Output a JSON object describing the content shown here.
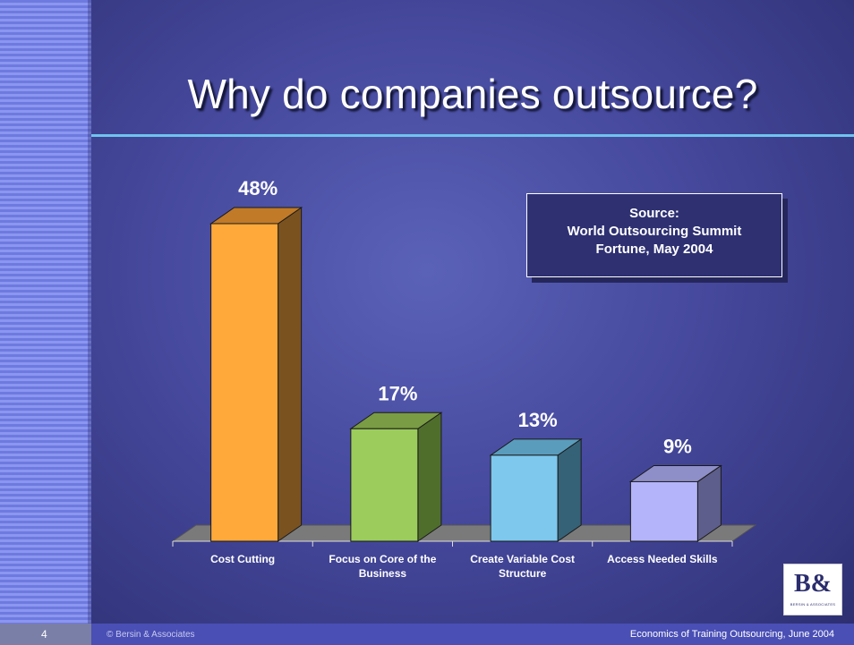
{
  "slide": {
    "title": "Why do companies outsource?",
    "source_box": {
      "line1": "Source:",
      "line2": "World Outsourcing Summit",
      "line3": "Fortune, May 2004"
    },
    "footer": {
      "page_number": "4",
      "copyright": "© Bersin & Associates",
      "right_text": "Economics of Training Outsourcing, June 2004"
    },
    "logo": {
      "mark": "B&",
      "subtitle": "BERSIN & ASSOCIATES"
    }
  },
  "colors": {
    "title_rule": "#6fc4ee",
    "floor": "#7a7a7a",
    "bars": [
      {
        "front": "#ffa93a",
        "top": "#c07a28",
        "side": "#7a5220"
      },
      {
        "front": "#9ccc5c",
        "top": "#7a9c44",
        "side": "#4f6e2c"
      },
      {
        "front": "#7ec8ee",
        "top": "#5a9cbc",
        "side": "#366278"
      },
      {
        "front": "#b4b4fa",
        "top": "#8e8ec8",
        "side": "#5e5e8c"
      }
    ]
  },
  "chart_data": {
    "type": "bar",
    "categories": [
      [
        "Cost Cutting"
      ],
      [
        "Focus on Core of the",
        "Business"
      ],
      [
        "Create Variable Cost",
        "Structure"
      ],
      [
        "Access Needed Skills"
      ]
    ],
    "values": [
      48,
      17,
      13,
      9
    ],
    "data_labels": [
      "48%",
      "17%",
      "13%",
      "9%"
    ],
    "ylim": [
      0,
      50
    ],
    "grid": false,
    "legend": "none",
    "style": "3d"
  }
}
